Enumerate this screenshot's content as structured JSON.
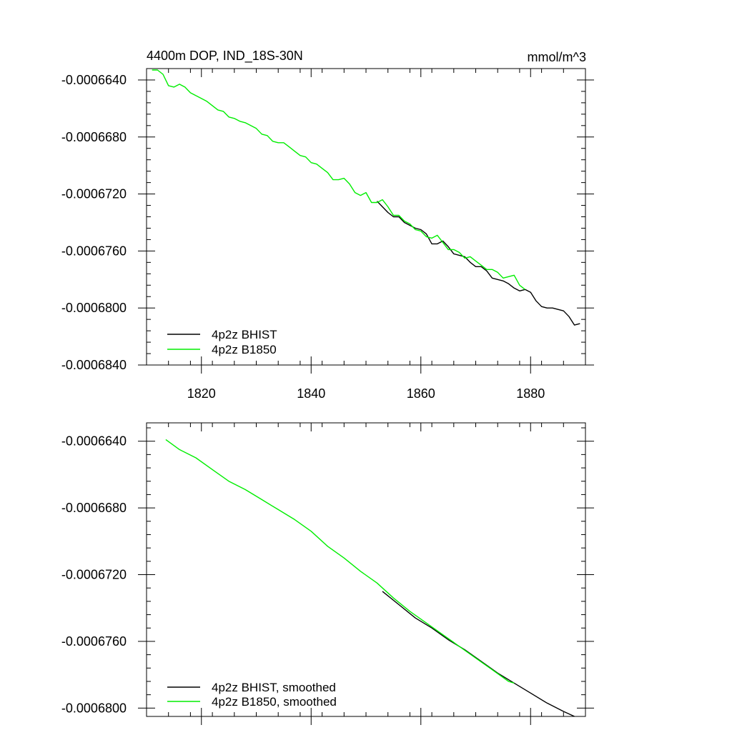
{
  "page": {
    "title_left": "4400m DOP, IND_18S-30N",
    "title_right": "mmol/m^3"
  },
  "colors": {
    "bhist": "#000000",
    "b1850": "#00ee00",
    "axis": "#000000",
    "background": "#ffffff"
  },
  "chart_data": [
    {
      "type": "line",
      "title": "4400m DOP, IND_18S-30N",
      "units": "mmol/m^3",
      "xlim": [
        1810,
        1890
      ],
      "ylim": [
        -0.000684,
        -0.0006632
      ],
      "x_ticks": [
        1820,
        1840,
        1860,
        1880
      ],
      "x_tick_labels": [
        "1820",
        "1840",
        "1860",
        "1880"
      ],
      "y_ticks": [
        -0.000664,
        -0.000668,
        -0.000672,
        -0.000676,
        -0.00068,
        -0.000684
      ],
      "y_tick_labels": [
        "-0.0006640",
        "-0.0006680",
        "-0.0006720",
        "-0.0006760",
        "-0.0006800",
        "-0.0006840"
      ],
      "legend_position": "bottom-left",
      "grid": false,
      "series": [
        {
          "name": "4p2z BHIST",
          "color": "#000000",
          "x": [
            1852,
            1854,
            1855,
            1856,
            1857,
            1858,
            1859,
            1860,
            1861,
            1862,
            1863,
            1864,
            1865,
            1866,
            1867,
            1868,
            1869,
            1870,
            1871,
            1872,
            1873,
            1874,
            1875,
            1876,
            1877,
            1878,
            1879,
            1880,
            1881,
            1882,
            1883,
            1884,
            1885,
            1886,
            1887,
            1888,
            1889
          ],
          "y": [
            -0.0006725,
            -0.0006733,
            -0.0006736,
            -0.0006736,
            -0.000674,
            -0.0006742,
            -0.0006744,
            -0.0006745,
            -0.0006748,
            -0.0006755,
            -0.0006755,
            -0.0006753,
            -0.0006757,
            -0.0006762,
            -0.0006763,
            -0.0006764,
            -0.0006768,
            -0.0006771,
            -0.0006771,
            -0.0006774,
            -0.0006779,
            -0.000678,
            -0.0006781,
            -0.0006783,
            -0.0006786,
            -0.0006788,
            -0.0006787,
            -0.0006789,
            -0.0006795,
            -0.0006799,
            -0.00068,
            -0.00068,
            -0.0006801,
            -0.0006802,
            -0.0006806,
            -0.0006812,
            -0.0006811
          ]
        },
        {
          "name": "4p2z B1850",
          "color": "#00ee00",
          "x": [
            1811,
            1812,
            1813,
            1814,
            1815,
            1816,
            1817,
            1818,
            1819,
            1820,
            1821,
            1822,
            1823,
            1824,
            1825,
            1826,
            1827,
            1828,
            1829,
            1830,
            1831,
            1832,
            1833,
            1834,
            1835,
            1836,
            1837,
            1838,
            1839,
            1840,
            1841,
            1842,
            1843,
            1844,
            1845,
            1846,
            1847,
            1848,
            1849,
            1850,
            1851,
            1852,
            1853,
            1854,
            1855,
            1856,
            1857,
            1858,
            1859,
            1860,
            1861,
            1862,
            1863,
            1864,
            1865,
            1866,
            1867,
            1868,
            1869,
            1870,
            1871,
            1872,
            1873,
            1874,
            1875,
            1876,
            1877,
            1878,
            1879
          ],
          "y": [
            -0.0006633,
            -0.0006633,
            -0.0006636,
            -0.0006644,
            -0.0006645,
            -0.0006643,
            -0.0006645,
            -0.0006649,
            -0.0006651,
            -0.0006653,
            -0.0006655,
            -0.0006658,
            -0.0006661,
            -0.0006662,
            -0.0006666,
            -0.0006667,
            -0.0006669,
            -0.000667,
            -0.0006672,
            -0.0006674,
            -0.0006678,
            -0.0006679,
            -0.0006683,
            -0.0006684,
            -0.0006684,
            -0.0006687,
            -0.000669,
            -0.0006693,
            -0.0006694,
            -0.0006698,
            -0.0006699,
            -0.0006702,
            -0.0006705,
            -0.000671,
            -0.000671,
            -0.0006709,
            -0.0006713,
            -0.0006719,
            -0.0006721,
            -0.0006719,
            -0.0006726,
            -0.0006726,
            -0.0006724,
            -0.0006729,
            -0.0006735,
            -0.0006735,
            -0.0006739,
            -0.0006741,
            -0.0006745,
            -0.0006746,
            -0.000675,
            -0.0006751,
            -0.0006749,
            -0.0006754,
            -0.0006759,
            -0.0006759,
            -0.0006761,
            -0.0006765,
            -0.0006764,
            -0.0006767,
            -0.000677,
            -0.0006773,
            -0.0006773,
            -0.0006775,
            -0.0006779,
            -0.0006778,
            -0.0006777,
            -0.0006784,
            -0.0006787
          ]
        }
      ]
    },
    {
      "type": "line",
      "xlim": [
        1810,
        1890
      ],
      "ylim": [
        -0.0006805,
        -0.0006629
      ],
      "x_ticks": [
        1820,
        1840,
        1860,
        1880
      ],
      "x_tick_labels": [],
      "y_ticks": [
        -0.000664,
        -0.000668,
        -0.000672,
        -0.000676,
        -0.00068
      ],
      "y_tick_labels": [
        "-0.0006640",
        "-0.0006680",
        "-0.0006720",
        "-0.0006760",
        "-0.0006800"
      ],
      "legend_position": "bottom-left",
      "grid": false,
      "series": [
        {
          "name": "4p2z BHIST, smoothed",
          "color": "#000000",
          "x": [
            1853,
            1856,
            1859,
            1862,
            1865,
            1868,
            1871,
            1874,
            1877,
            1880,
            1883,
            1886,
            1888
          ],
          "y": [
            -0.000673,
            -0.0006738,
            -0.0006746,
            -0.0006752,
            -0.0006759,
            -0.0006765,
            -0.0006772,
            -0.0006779,
            -0.0006785,
            -0.0006791,
            -0.0006797,
            -0.0006802,
            -0.0006805
          ]
        },
        {
          "name": "4p2z B1850, smoothed",
          "color": "#00ee00",
          "x": [
            1813.5,
            1816,
            1819,
            1822,
            1825,
            1828,
            1831,
            1834,
            1837,
            1840,
            1843,
            1846,
            1849,
            1852,
            1855,
            1858,
            1861,
            1864,
            1867,
            1870,
            1873,
            1876,
            1877
          ],
          "y": [
            -0.0006639,
            -0.0006645,
            -0.000665,
            -0.0006657,
            -0.0006664,
            -0.0006669,
            -0.0006675,
            -0.0006681,
            -0.0006687,
            -0.0006694,
            -0.0006703,
            -0.000671,
            -0.0006718,
            -0.0006725,
            -0.0006734,
            -0.0006742,
            -0.0006749,
            -0.0006756,
            -0.0006763,
            -0.000677,
            -0.0006777,
            -0.0006784,
            -0.0006785
          ]
        }
      ]
    }
  ]
}
